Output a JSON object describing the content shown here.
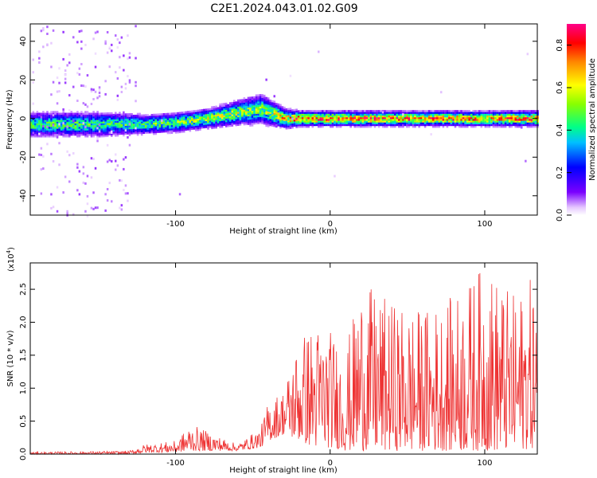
{
  "title": "C2E1.2024.043.01.02.G09",
  "chart_data": [
    {
      "type": "heatmap",
      "xlabel": "Height of straight line (km)",
      "ylabel": "Frequency (Hz)",
      "xlim": [
        -194,
        134
      ],
      "ylim": [
        -50,
        49
      ],
      "xticks": [
        "-100",
        "0",
        "100"
      ],
      "yticks": [
        "-40",
        "-20",
        "0",
        "20",
        "40"
      ],
      "colorbar": {
        "label": "Normalized spectral amplitude",
        "range": [
          0.0,
          0.9
        ],
        "ticks": [
          "0.0",
          "0.2",
          "0.4",
          "0.6",
          "0.8"
        ]
      },
      "ridge": {
        "description_points_x": [
          -194,
          -150,
          -120,
          -100,
          -80,
          -60,
          -45,
          -30,
          -20,
          -10,
          0,
          50,
          100,
          134
        ],
        "center_freq_hz": [
          -3,
          -3,
          -3,
          -2,
          0,
          3,
          5,
          0,
          0,
          0,
          0,
          0,
          0,
          0
        ],
        "halfwidth_hz": [
          5,
          5,
          4,
          4,
          4,
          5,
          6,
          4,
          3,
          3,
          3,
          3,
          3,
          3
        ],
        "peak_amplitude": [
          0.5,
          0.5,
          0.5,
          0.55,
          0.6,
          0.6,
          0.55,
          0.7,
          0.85,
          0.85,
          0.85,
          0.8,
          0.8,
          0.85
        ]
      },
      "grid": false
    },
    {
      "type": "line",
      "xlabel": "Height of straight line (km)",
      "ylabel": "SNR (10 * v/v)",
      "multiplier": "(x10",
      "multiplier_exp": "4",
      "multiplier_close": ")",
      "xlim": [
        -194,
        134
      ],
      "ylim": [
        0,
        2.9
      ],
      "xticks": [
        "-100",
        "0",
        "100"
      ],
      "yticks": [
        "0.0",
        "0.5",
        "1.0",
        "1.5",
        "2.0",
        "2.5"
      ],
      "color": "#ee3333",
      "envelope": {
        "x": [
          -194,
          -130,
          -120,
          -100,
          -90,
          -60,
          -45,
          -40,
          -30,
          -20,
          -10,
          0,
          10,
          20,
          40,
          60,
          80,
          100,
          120,
          134
        ],
        "y_min": [
          0.0,
          0.0,
          0.02,
          0.03,
          0.05,
          0.05,
          0.1,
          0.2,
          0.3,
          0.2,
          0.1,
          0.1,
          0.05,
          0.05,
          0.05,
          0.05,
          0.05,
          0.05,
          0.05,
          0.1
        ],
        "y_max": [
          0.03,
          0.05,
          0.15,
          0.2,
          0.45,
          0.15,
          0.4,
          0.8,
          1.0,
          1.8,
          2.0,
          1.9,
          1.6,
          2.6,
          2.3,
          2.2,
          2.4,
          2.9,
          2.4,
          2.8
        ]
      },
      "grid": false
    }
  ]
}
